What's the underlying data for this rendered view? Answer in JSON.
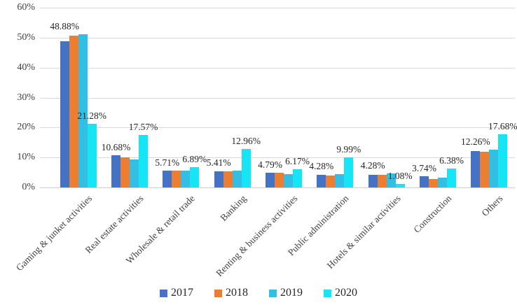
{
  "chart_data": {
    "type": "bar",
    "title": "",
    "xlabel": "",
    "ylabel": "",
    "ylim": [
      0,
      60
    ],
    "ytick_labels": [
      "0%",
      "10%",
      "20%",
      "30%",
      "40%",
      "50%",
      "60%"
    ],
    "ytick_values": [
      0,
      10,
      20,
      30,
      40,
      50,
      60
    ],
    "grid": true,
    "legend_position": "bottom",
    "categories": [
      "Gaming & junket activities",
      "Real estate activities",
      "Wholesale & retail trade",
      "Banking",
      "Renting & business activities",
      "Public administration",
      "Hotels & similar activities",
      "Construction",
      "Others"
    ],
    "series": [
      {
        "name": "2017",
        "color": "#4472C4",
        "values": [
          48.88,
          10.68,
          5.71,
          5.41,
          4.79,
          4.28,
          4.28,
          3.74,
          12.26
        ],
        "data_labels": [
          "48.88%",
          "10.68%",
          "5.71%",
          "5.41%",
          "4.79%",
          "4.28%",
          "4.28%",
          "3.74%",
          "12.26%"
        ]
      },
      {
        "name": "2018",
        "color": "#ED7D31",
        "values": [
          50.7,
          10.1,
          5.6,
          5.35,
          4.9,
          4.0,
          4.2,
          2.9,
          11.9
        ],
        "data_labels": null
      },
      {
        "name": "2019",
        "color": "#33BEE3",
        "values": [
          51.1,
          9.4,
          5.5,
          5.6,
          4.4,
          4.45,
          4.7,
          3.2,
          12.7
        ],
        "data_labels": null
      },
      {
        "name": "2020",
        "color": "#15E5F5",
        "values": [
          21.28,
          17.57,
          6.89,
          12.96,
          6.17,
          9.99,
          1.08,
          6.38,
          17.68
        ],
        "data_labels": [
          "21.28%",
          "17.57%",
          "6.89%",
          "12.96%",
          "6.17%",
          "9.99%",
          "1.08%",
          "6.38%",
          "17.68%"
        ]
      }
    ]
  },
  "colors": {
    "gridline": "#d9d9d9",
    "axis_line": "#cfcfcf",
    "tick_text": "#404040",
    "label_text": "#262626"
  }
}
